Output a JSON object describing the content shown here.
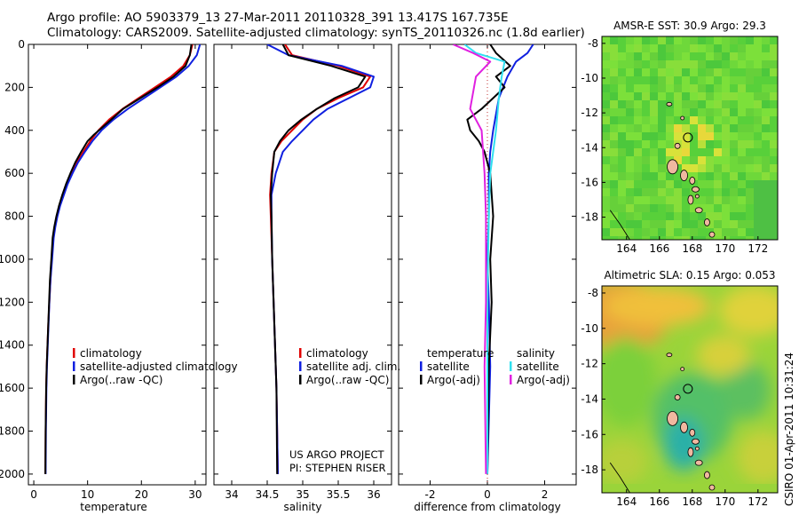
{
  "header": {
    "title_line1": "Argo profile: AO 5903379_13 27-Mar-2011 20110328_391 13.417S 167.735E",
    "title_line2": "Climatology: CARS2009. Satellite-adjusted climatology: synTS_20110326.nc (1.8d earlier)"
  },
  "side_caption": "CSIRO 01-Apr-2011 10:31:24",
  "colors": {
    "climatology": "#e00000",
    "satellite": "#1020e0",
    "argo": "#000000",
    "sat_salinity": "#30e0f0",
    "argo_salinity": "#e020e0"
  },
  "chart_data": [
    {
      "type": "line",
      "xlabel": "temperature",
      "ylabel": "",
      "xlim": [
        -1,
        32
      ],
      "ylim": [
        2050,
        0
      ],
      "xticks": [
        "0",
        "10",
        "20",
        "30"
      ],
      "yticks": [
        "0",
        "200",
        "400",
        "600",
        "800",
        "1000",
        "1200",
        "1400",
        "1600",
        "1800",
        "2000"
      ],
      "legend": [
        "climatology",
        "satellite-adjusted climatology",
        "Argo(..raw -QC)"
      ],
      "series": [
        {
          "name": "climatology",
          "color": "#e00000",
          "x": [
            29.5,
            29.0,
            27.8,
            25.5,
            22.5,
            19.5,
            16.5,
            14.0,
            12.0,
            10.5,
            9.2,
            8.0,
            7.0,
            6.2,
            5.5,
            4.8,
            4.3,
            3.9,
            3.6,
            3.3,
            3.1,
            2.9,
            2.7,
            2.55,
            2.4,
            2.3,
            2.2,
            2.15
          ],
          "y": [
            0,
            50,
            100,
            150,
            200,
            250,
            300,
            350,
            400,
            450,
            500,
            550,
            600,
            650,
            700,
            750,
            800,
            850,
            900,
            1000,
            1100,
            1200,
            1300,
            1400,
            1500,
            1600,
            1800,
            2000
          ]
        },
        {
          "name": "satellite-adjusted climatology",
          "color": "#1020e0",
          "x": [
            30.9,
            30.3,
            28.8,
            26.5,
            23.5,
            20.5,
            17.5,
            14.8,
            12.6,
            10.9,
            9.5,
            8.2,
            7.2,
            6.3,
            5.6,
            4.9,
            4.4,
            4.0,
            3.7,
            3.4,
            3.1,
            2.9,
            2.75,
            2.6,
            2.45,
            2.35,
            2.25,
            2.2
          ],
          "y": [
            0,
            50,
            100,
            150,
            200,
            250,
            300,
            350,
            400,
            450,
            500,
            550,
            600,
            650,
            700,
            750,
            800,
            850,
            900,
            1000,
            1100,
            1200,
            1300,
            1400,
            1500,
            1600,
            1800,
            2000
          ]
        },
        {
          "name": "Argo(..raw -QC)",
          "color": "#000000",
          "x": [
            29.3,
            29.0,
            28.2,
            26.0,
            23.0,
            19.8,
            16.6,
            14.4,
            11.2,
            10.0,
            8.8,
            7.7,
            6.8,
            6.0,
            5.3,
            4.7,
            4.2,
            3.8,
            3.5,
            3.25,
            3.0,
            2.85,
            2.7,
            2.55,
            2.4,
            2.3,
            2.2,
            2.15
          ],
          "y": [
            0,
            50,
            100,
            150,
            200,
            250,
            300,
            350,
            420,
            450,
            500,
            550,
            600,
            650,
            700,
            750,
            800,
            850,
            900,
            1000,
            1100,
            1200,
            1300,
            1400,
            1500,
            1600,
            1800,
            2000
          ]
        }
      ]
    },
    {
      "type": "line",
      "xlabel": "salinity",
      "ylabel": "",
      "xlim": [
        33.75,
        36.25
      ],
      "ylim": [
        2050,
        0
      ],
      "xticks": [
        "34",
        "34.5",
        "35",
        "35.5",
        "36"
      ],
      "legend": [
        "climatology",
        "satellite adj. clim.",
        "Argo(..raw -QC)"
      ],
      "annotation": [
        "US ARGO PROJECT",
        "PI: STEPHEN RISER"
      ],
      "series": [
        {
          "name": "climatology",
          "color": "#e00000",
          "x": [
            34.75,
            34.85,
            35.5,
            35.95,
            35.85,
            35.5,
            35.2,
            35.0,
            34.85,
            34.7,
            34.6,
            34.56,
            34.54,
            34.55,
            34.57,
            34.59,
            34.61,
            34.63,
            34.65
          ],
          "y": [
            0,
            50,
            100,
            150,
            200,
            250,
            300,
            350,
            400,
            450,
            500,
            600,
            700,
            800,
            1000,
            1200,
            1400,
            1600,
            2000
          ]
        },
        {
          "name": "satellite adj. clim.",
          "color": "#1020e0",
          "x": [
            34.5,
            34.8,
            35.55,
            36.0,
            35.95,
            35.65,
            35.35,
            35.15,
            35.0,
            34.85,
            34.72,
            34.62,
            34.56,
            34.56,
            34.57,
            34.59,
            34.61,
            34.63,
            34.65
          ],
          "y": [
            0,
            50,
            100,
            150,
            200,
            250,
            300,
            350,
            400,
            450,
            500,
            600,
            700,
            800,
            1000,
            1200,
            1400,
            1600,
            2000
          ]
        },
        {
          "name": "Argo(..raw -QC)",
          "color": "#000000",
          "x": [
            34.72,
            34.8,
            35.4,
            35.88,
            35.78,
            35.45,
            35.2,
            34.98,
            34.8,
            34.68,
            34.6,
            34.57,
            34.55,
            34.56,
            34.57,
            34.59,
            34.61,
            34.63,
            34.64
          ],
          "y": [
            0,
            50,
            100,
            150,
            200,
            250,
            300,
            350,
            400,
            450,
            500,
            600,
            700,
            800,
            1000,
            1200,
            1400,
            1600,
            2000
          ]
        }
      ]
    },
    {
      "type": "line",
      "xlabel": "difference from climatology",
      "ylabel": "",
      "xlim": [
        -3.1,
        3.1
      ],
      "ylim": [
        2050,
        0
      ],
      "xticks": [
        "-2",
        "0",
        "2"
      ],
      "legend": [
        "temperature",
        "satellite",
        "Argo(-adj)",
        "salinity",
        "satellite",
        "Argo(-adj)"
      ],
      "series": [
        {
          "name": "satellite",
          "group": "temperature",
          "color": "#1020e0",
          "x": [
            1.6,
            1.4,
            1.0,
            0.7,
            0.4,
            0.2,
            0.1,
            0.05,
            0.05,
            0.0,
            0.05,
            0.1,
            0.0
          ],
          "y": [
            0,
            40,
            80,
            150,
            250,
            400,
            500,
            600,
            800,
            1000,
            1200,
            1500,
            2000
          ]
        },
        {
          "name": "Argo(-adj)",
          "group": "temperature",
          "color": "#000000",
          "x": [
            0.1,
            0.3,
            0.8,
            0.3,
            0.6,
            -0.2,
            -0.7,
            -0.6,
            -0.3,
            -0.1,
            0.1,
            0.2,
            0.1,
            0.15,
            0.05,
            0.0
          ],
          "y": [
            0,
            40,
            100,
            150,
            200,
            300,
            350,
            400,
            450,
            500,
            600,
            800,
            1000,
            1200,
            1500,
            2000
          ]
        },
        {
          "name": "satellite",
          "group": "salinity",
          "color": "#30e0f0",
          "x": [
            -0.8,
            -0.4,
            0.6,
            0.5,
            0.4,
            0.3,
            0.2,
            0.1,
            0.05,
            0.0,
            0.0
          ],
          "y": [
            0,
            40,
            80,
            150,
            250,
            400,
            500,
            600,
            800,
            1200,
            2000
          ]
        },
        {
          "name": "Argo(-adj)",
          "group": "salinity",
          "color": "#e020e0",
          "x": [
            -1.2,
            -0.5,
            0.1,
            -0.4,
            -0.6,
            -0.2,
            -0.1,
            -0.05,
            -0.05,
            -0.1,
            -0.05
          ],
          "y": [
            0,
            40,
            80,
            150,
            300,
            400,
            600,
            800,
            1200,
            1500,
            2000
          ]
        }
      ]
    },
    {
      "type": "heatmap",
      "title": "AMSR-E SST: 30.9 Argo: 29.3",
      "xticks": [
        "164",
        "166",
        "168",
        "170",
        "172"
      ],
      "yticks": [
        "-8",
        "-10",
        "-12",
        "-14",
        "-16",
        "-18"
      ],
      "xlim": [
        162.5,
        173.2
      ],
      "ylim": [
        -19.3,
        -7.6
      ],
      "marker": {
        "lon": 167.735,
        "lat": -13.417
      }
    },
    {
      "type": "heatmap",
      "title": "Altimetric SLA: 0.15 Argo: 0.053",
      "xticks": [
        "164",
        "166",
        "168",
        "170",
        "172"
      ],
      "yticks": [
        "-8",
        "-10",
        "-12",
        "-14",
        "-16",
        "-18"
      ],
      "xlim": [
        162.5,
        173.2
      ],
      "ylim": [
        -19.3,
        -7.6
      ],
      "marker": {
        "lon": 167.735,
        "lat": -13.417
      }
    }
  ]
}
